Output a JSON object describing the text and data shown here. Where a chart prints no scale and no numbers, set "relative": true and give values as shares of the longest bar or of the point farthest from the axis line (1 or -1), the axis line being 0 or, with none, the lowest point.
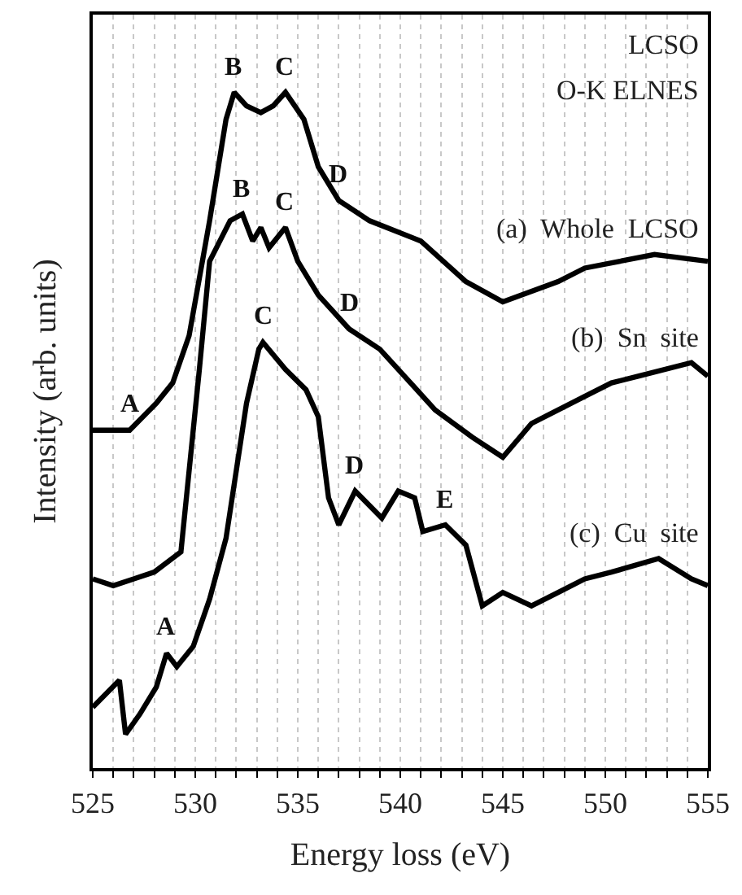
{
  "chart_data": {
    "type": "line",
    "relative": true,
    "xlabel": "Energy loss (eV)",
    "ylabel": "Intensity (arb. units)",
    "xlim": [
      525,
      555
    ],
    "xticks": [
      525,
      {
        "value": 526,
        "label": null
      },
      {
        "value": 527,
        "label": null
      },
      {
        "value": 528,
        "label": null
      },
      {
        "value": 529,
        "label": null
      },
      530,
      {
        "value": 531,
        "label": null
      },
      {
        "value": 532,
        "label": null
      },
      {
        "value": 533,
        "label": null
      },
      {
        "value": 534,
        "label": null
      },
      535,
      {
        "value": 536,
        "label": null
      },
      {
        "value": 537,
        "label": null
      },
      {
        "value": 538,
        "label": null
      },
      {
        "value": 539,
        "label": null
      },
      540,
      {
        "value": 541,
        "label": null
      },
      {
        "value": 542,
        "label": null
      },
      {
        "value": 543,
        "label": null
      },
      {
        "value": 544,
        "label": null
      },
      545,
      {
        "value": 546,
        "label": null
      },
      {
        "value": 547,
        "label": null
      },
      {
        "value": 548,
        "label": null
      },
      {
        "value": 549,
        "label": null
      },
      550,
      {
        "value": 551,
        "label": null
      },
      {
        "value": 552,
        "label": null
      },
      {
        "value": 553,
        "label": null
      },
      {
        "value": 554,
        "label": null
      },
      555
    ],
    "grid": "x",
    "legend": false,
    "marker": "none",
    "line_style": "solid",
    "series": [
      {
        "name": "(a)  Whole  LCSO",
        "color": "#000000",
        "x": [
          525,
          526.8,
          528.1,
          528.9,
          529.7,
          530.7,
          531.5,
          531.9,
          532.5,
          533.2,
          533.8,
          534.4,
          535.3,
          536,
          537,
          538.5,
          541,
          543.2,
          545,
          547.7,
          549,
          552.4,
          555
        ],
        "values": [
          0.5,
          0.5,
          0.54,
          0.57,
          0.64,
          0.81,
          0.96,
          1.0,
          0.98,
          0.97,
          0.98,
          1.0,
          0.96,
          0.89,
          0.84,
          0.81,
          0.78,
          0.72,
          0.69,
          0.72,
          0.74,
          0.76,
          0.75
        ]
      },
      {
        "name": "(b)  Sn  site",
        "color": "#000000",
        "x": [
          525,
          526,
          527,
          528,
          529.3,
          530.2,
          530.7,
          531.7,
          532.3,
          532.8,
          533.2,
          533.6,
          534.4,
          535,
          536,
          537.5,
          539,
          540.8,
          541.7,
          543.5,
          545,
          546.4,
          549,
          550.3,
          551.6,
          554.2,
          555
        ],
        "values": [
          0.28,
          0.27,
          0.28,
          0.29,
          0.32,
          0.59,
          0.75,
          0.81,
          0.82,
          0.78,
          0.8,
          0.77,
          0.8,
          0.75,
          0.7,
          0.65,
          0.62,
          0.56,
          0.53,
          0.49,
          0.46,
          0.51,
          0.55,
          0.57,
          0.58,
          0.6,
          0.58
        ]
      },
      {
        "name": "(c)  Cu  site",
        "color": "#000000",
        "x": [
          525,
          526.3,
          526.6,
          527.3,
          528.1,
          528.6,
          529.1,
          529.9,
          530.7,
          531.5,
          532,
          532.5,
          533.1,
          533.3,
          534.4,
          535.4,
          536,
          536.5,
          537,
          537.8,
          539.1,
          539.9,
          540.7,
          541.1,
          542.2,
          543.2,
          544,
          545,
          546.4,
          547.7,
          549,
          550.3,
          552.6,
          554.2,
          555
        ],
        "values": [
          0.09,
          0.13,
          0.05,
          0.08,
          0.12,
          0.17,
          0.15,
          0.18,
          0.25,
          0.34,
          0.44,
          0.54,
          0.62,
          0.63,
          0.59,
          0.56,
          0.52,
          0.4,
          0.36,
          0.41,
          0.37,
          0.41,
          0.4,
          0.35,
          0.36,
          0.33,
          0.24,
          0.26,
          0.24,
          0.26,
          0.28,
          0.29,
          0.31,
          0.28,
          0.27
        ]
      }
    ],
    "annotations": [
      "LCSO",
      "O-K ELNES",
      {
        "text": "A",
        "x": 526.8,
        "y": 0.5
      },
      {
        "text": "B",
        "x": 531.9,
        "y": 1.0
      },
      {
        "text": "C",
        "x": 534.4,
        "y": 1.0
      },
      {
        "text": "D",
        "x": 537,
        "y": 0.84
      },
      {
        "text": "B",
        "x": 532.3,
        "y": 0.82
      },
      {
        "text": "C",
        "x": 534.4,
        "y": 0.8
      },
      {
        "text": "D",
        "x": 537.5,
        "y": 0.65
      },
      {
        "text": "C",
        "x": 533.3,
        "y": 0.63
      },
      {
        "text": "D",
        "x": 537.8,
        "y": 0.41
      },
      {
        "text": "E",
        "x": 542.2,
        "y": 0.36
      },
      {
        "text": "A",
        "x": 528.6,
        "y": 0.17
      }
    ]
  }
}
